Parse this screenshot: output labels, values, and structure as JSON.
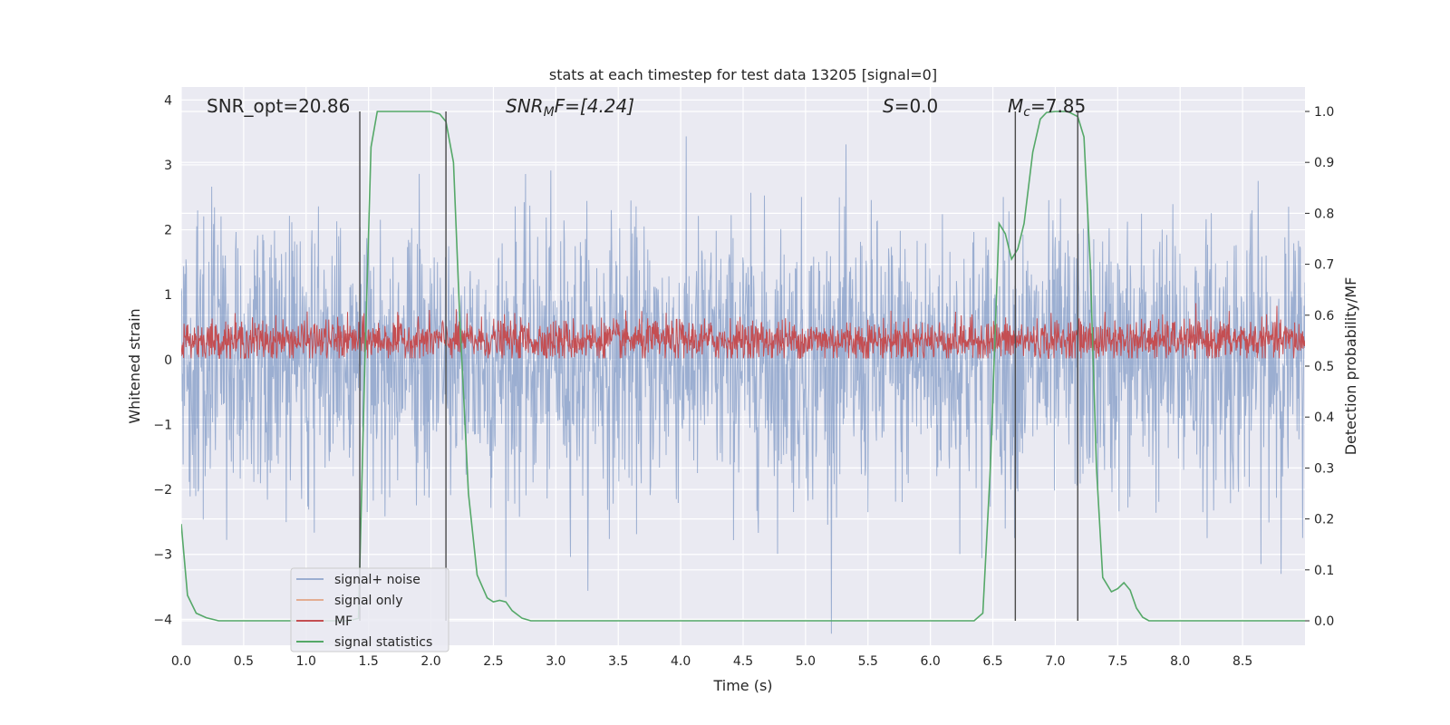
{
  "chart_data": {
    "type": "line",
    "title": "stats at each timestep for test data 13205 [signal=0]",
    "xlabel": "Time (s)",
    "ylabel": "Whitened strain",
    "ylabel_right": "Detection probability/MF",
    "xlim": [
      0.0,
      9.0
    ],
    "ylim": [
      -4.4,
      4.2
    ],
    "ylim_right": [
      -0.048,
      1.048
    ],
    "x_ticks": [
      "0.0",
      "0.5",
      "1.0",
      "1.5",
      "2.0",
      "2.5",
      "3.0",
      "3.5",
      "4.0",
      "4.5",
      "5.0",
      "5.5",
      "6.0",
      "6.5",
      "7.0",
      "7.5",
      "8.0",
      "8.5"
    ],
    "y_ticks": [
      "4",
      "3",
      "2",
      "1",
      "0",
      "−1",
      "−2",
      "−3",
      "−4"
    ],
    "y_ticks_right": [
      "1.0",
      "0.9",
      "0.8",
      "0.7",
      "0.6",
      "0.5",
      "0.4",
      "0.3",
      "0.2",
      "0.1",
      "0.0"
    ],
    "grid": true,
    "legend_position": "lower-left",
    "annotations": {
      "snr_opt": "SNR_opt=20.86",
      "snr_mf_main": "SNR",
      "snr_mf_sub": "M",
      "snr_mf_rest": "F=[4.24]",
      "s_main": "S",
      "s_rest": "=0.0",
      "mc_main": "M",
      "mc_sub": "c",
      "mc_rest": "=7.85"
    },
    "vertical_lines_x": [
      1.43,
      2.12,
      6.68,
      7.18
    ],
    "series": [
      {
        "name": "signal+ noise",
        "color": "#4c72b0",
        "axis": "left",
        "description": "whitened noise ~N(0,1), sampled densely; envelope roughly between -4 and 3.8"
      },
      {
        "name": "signal only",
        "color": "#dd8452",
        "axis": "left",
        "values": []
      },
      {
        "name": "MF",
        "color": "#c44e52",
        "axis": "left",
        "description": "noisy band between about 0.0 and 1.0 centered near 0.3"
      },
      {
        "name": "signal statistics",
        "color": "#55a868",
        "axis": "right",
        "x": [
          0.0,
          0.05,
          0.12,
          0.2,
          0.3,
          0.5,
          1.0,
          1.35,
          1.42,
          1.47,
          1.52,
          1.57,
          1.7,
          2.0,
          2.07,
          2.12,
          2.18,
          2.23,
          2.3,
          2.37,
          2.45,
          2.5,
          2.55,
          2.6,
          2.65,
          2.73,
          2.8,
          3.0,
          4.0,
          5.0,
          6.0,
          6.35,
          6.42,
          6.48,
          6.55,
          6.6,
          6.65,
          6.7,
          6.75,
          6.82,
          6.88,
          6.93,
          7.0,
          7.1,
          7.18,
          7.23,
          7.28,
          7.33,
          7.38,
          7.45,
          7.5,
          7.55,
          7.6,
          7.65,
          7.7,
          7.75,
          7.8,
          8.0,
          9.0
        ],
        "values": [
          0.19,
          0.05,
          0.015,
          0.006,
          0.0,
          0.0,
          0.0,
          0.0,
          0.005,
          0.5,
          0.93,
          1.0,
          1.0,
          1.0,
          0.995,
          0.98,
          0.9,
          0.6,
          0.25,
          0.09,
          0.045,
          0.037,
          0.04,
          0.037,
          0.02,
          0.005,
          0.0,
          0.0,
          0.0,
          0.0,
          0.0,
          0.0,
          0.015,
          0.3,
          0.78,
          0.76,
          0.71,
          0.73,
          0.78,
          0.92,
          0.985,
          0.998,
          1.0,
          1.0,
          0.99,
          0.95,
          0.7,
          0.3,
          0.085,
          0.057,
          0.063,
          0.075,
          0.06,
          0.025,
          0.007,
          0.0,
          0.0,
          0.0,
          0.0
        ]
      }
    ]
  }
}
